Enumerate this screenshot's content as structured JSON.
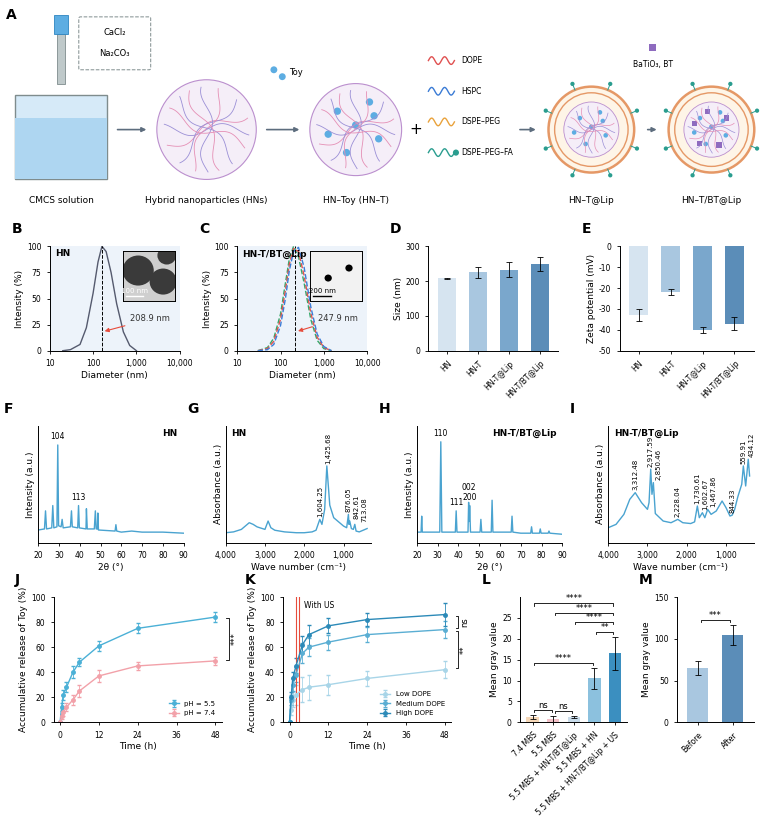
{
  "diagram": {
    "label": "A",
    "reagents": [
      "CaCl₂",
      "Na₂CO₃"
    ],
    "nodes": [
      {
        "label": "CMCS solution"
      },
      {
        "label": "Hybrid nanoparticles (HNs)"
      },
      {
        "label": "HN–Toy (HN–T)"
      },
      {
        "label": "HN–T@Lip"
      },
      {
        "label": "HN–T/BT@Lip"
      }
    ],
    "drug": "Toy",
    "join_symbol": "+",
    "lipids": [
      {
        "name": "DOPE",
        "color": "#e05050"
      },
      {
        "name": "HSPC",
        "color": "#3a7bd5"
      },
      {
        "name": "DSPE–PEG",
        "color": "#e9a23b"
      },
      {
        "name": "DSPE–PEG–FA",
        "color": "#2a9d8f"
      }
    ],
    "additive": "BaTiO₃, BT"
  },
  "chart_data": [
    {
      "label": "B",
      "type": "line",
      "title": "HN",
      "log": "x",
      "x": [
        20,
        30,
        50,
        70,
        100,
        130,
        160,
        200,
        260,
        350,
        500,
        700,
        1000
      ],
      "series": [
        {
          "color": "#555a6e",
          "line_style": "solid",
          "values": [
            0,
            1,
            6,
            22,
            55,
            85,
            100,
            95,
            75,
            45,
            18,
            5,
            0
          ]
        }
      ],
      "reference_x": 160,
      "annotation": "208.9 nm",
      "inset_scale": "100 nm",
      "xlim": [
        10,
        10000
      ],
      "xticks": [
        10,
        100,
        {
          "value": 1000,
          "label": "1,000"
        },
        {
          "value": 10000,
          "label": "10,000"
        }
      ],
      "ylim": [
        0,
        100
      ],
      "yticks": [
        0,
        25,
        50,
        75,
        100
      ],
      "x_label": "Diameter (nm)",
      "y_label": "Intensity (%)"
    },
    {
      "label": "C",
      "type": "line",
      "title": "HN-T/BT@Lip",
      "log": "x",
      "x": [
        30,
        50,
        70,
        100,
        130,
        160,
        200,
        260,
        350,
        500,
        700,
        1000,
        1500
      ],
      "series": [
        {
          "color": "#35a86b",
          "line_style": "dashed",
          "values": [
            0,
            3,
            12,
            35,
            65,
            88,
            100,
            90,
            65,
            30,
            10,
            2,
            0
          ]
        },
        {
          "color": "#e0524f",
          "line_style": "dashed",
          "values": [
            0,
            2,
            9,
            30,
            58,
            83,
            98,
            95,
            72,
            36,
            13,
            3,
            0
          ]
        },
        {
          "color": "#3b7dd8",
          "line_style": "dashed",
          "values": [
            0,
            1,
            6,
            24,
            50,
            77,
            95,
            99,
            80,
            42,
            16,
            4,
            0
          ]
        }
      ],
      "reference_x": 220,
      "annotation": "247.9 nm",
      "inset_scale": "200 nm",
      "xlim": [
        10,
        10000
      ],
      "xticks": [
        10,
        100,
        {
          "value": 1000,
          "label": "1,000"
        },
        {
          "value": 10000,
          "label": "10,000"
        }
      ],
      "ylim": [
        0,
        100
      ],
      "yticks": [
        0,
        25,
        50,
        75,
        100
      ],
      "x_label": "Diameter (nm)",
      "y_label": "Intensity (%)"
    },
    {
      "label": "D",
      "type": "bar",
      "categories": [
        "HN",
        "HN-T",
        "HN-T@Lip",
        "HN-T/BT@Lip"
      ],
      "values": [
        208,
        225,
        233,
        248
      ],
      "errors": [
        2,
        15,
        22,
        20
      ],
      "colors": [
        "#d6e4f0",
        "#a9c7e0",
        "#7aa7cc",
        "#5b8db8"
      ],
      "ylim": [
        0,
        300
      ],
      "yticks": [
        0,
        100,
        200,
        300
      ],
      "y_label": "Size (nm)"
    },
    {
      "label": "E",
      "type": "bar",
      "categories": [
        "HN",
        "HN-T",
        "HN-T@Lip",
        "HN-T/BT@Lip"
      ],
      "values": [
        -33,
        -22,
        -40,
        -37
      ],
      "errors": [
        3,
        1.5,
        1.5,
        3
      ],
      "colors": [
        "#d6e4f0",
        "#a9c7e0",
        "#7aa7cc",
        "#5b8db8"
      ],
      "ylim": [
        -50,
        0
      ],
      "yticks": [
        -50,
        -40,
        -30,
        -20,
        -10,
        0
      ],
      "y_label": "Zeta potential (mV)"
    },
    {
      "label": "F",
      "type": "line",
      "title": "HN",
      "tick_labels": "x",
      "x": [
        20,
        23,
        23.5,
        24,
        26.5,
        27,
        27.5,
        29,
        29.4,
        29.8,
        31,
        31.5,
        32,
        35.5,
        36,
        36.4,
        39,
        39.4,
        39.8,
        43,
        43.2,
        43.6,
        47,
        47.5,
        47.9,
        48.5,
        48.7,
        49,
        57,
        57.4,
        57.8,
        60,
        65,
        70,
        80,
        90
      ],
      "series": [
        {
          "color": "#4aa3d0",
          "line_style": "solid",
          "values": [
            12,
            13,
            30,
            13,
            14,
            35,
            14,
            15,
            92,
            16,
            15,
            22,
            14,
            15,
            30,
            15,
            14,
            35,
            14,
            13,
            32,
            13,
            13,
            30,
            13,
            13,
            28,
            12,
            11,
            17,
            11,
            10,
            11,
            10,
            10,
            9
          ]
        }
      ],
      "peak_labels": [
        {
          "text": "104",
          "x": 29.4,
          "y": 92
        },
        {
          "text": "113",
          "x": 39.4,
          "y": 35
        }
      ],
      "xlim": [
        20,
        90
      ],
      "xticks": [
        20,
        30,
        40,
        50,
        60,
        70,
        80,
        90
      ],
      "ylim": [
        0,
        110
      ],
      "x_label": "2θ (°)",
      "y_label": "Intensity (a.u.)"
    },
    {
      "label": "G",
      "type": "line",
      "title": "HN",
      "tick_labels": "x",
      "x": [
        4000,
        3800,
        3600,
        3450,
        3400,
        3300,
        3200,
        3000,
        2920,
        2850,
        2750,
        2500,
        2200,
        2000,
        1800,
        1700,
        1604,
        1550,
        1480,
        1425,
        1350,
        1250,
        1100,
        1000,
        920,
        876,
        860,
        842,
        800,
        750,
        713,
        680,
        600,
        500,
        400
      ],
      "series": [
        {
          "color": "#4aa3d0",
          "line_style": "solid",
          "values": [
            12,
            13,
            16,
            22,
            24,
            22,
            19,
            16,
            26,
            18,
            15,
            13,
            12,
            12,
            13,
            15,
            28,
            22,
            40,
            92,
            45,
            30,
            24,
            20,
            18,
            34,
            22,
            26,
            17,
            16,
            22,
            14,
            13,
            15,
            17
          ]
        }
      ],
      "peak_labels": [
        {
          "text": "1,604.25",
          "x": 1604.25,
          "y": 28
        },
        {
          "text": "1,425.68",
          "x": 1425.68,
          "y": 92
        },
        {
          "text": "876.05",
          "x": 876.05,
          "y": 34
        },
        {
          "text": "842.61",
          "x": 842.61,
          "y": 26
        },
        {
          "text": "713.08",
          "x": 713.08,
          "y": 22
        }
      ],
      "xlim": [
        4000,
        300
      ],
      "xticks": [
        {
          "value": 4000,
          "label": "4,000"
        },
        {
          "value": 3000,
          "label": "3,000"
        },
        {
          "value": 2000,
          "label": "2,000"
        },
        {
          "value": 1000,
          "label": "1,000"
        }
      ],
      "ylim": [
        0,
        140
      ],
      "x_label": "Wave number (cm⁻¹)",
      "y_label": "Absorbance (a.u.)"
    },
    {
      "label": "H",
      "type": "line",
      "title": "HN-T/BT@Lip",
      "tick_labels": "x",
      "x": [
        20,
        22,
        22.3,
        22.6,
        28,
        31,
        31.5,
        32,
        38.5,
        38.9,
        39.3,
        44.6,
        44.9,
        45.2,
        45.4,
        45.8,
        50.4,
        50.8,
        51.2,
        55.8,
        56.2,
        56.6,
        65.4,
        65.8,
        66.2,
        70,
        74.8,
        75.2,
        75.6,
        79,
        79.4,
        79.8,
        83.2,
        83.6,
        84,
        90
      ],
      "series": [
        {
          "color": "#4aa3d0",
          "line_style": "solid",
          "values": [
            10,
            10,
            25,
            10,
            10,
            10,
            95,
            10,
            10,
            30,
            10,
            10,
            38,
            20,
            35,
            10,
            10,
            22,
            10,
            10,
            40,
            10,
            10,
            25,
            10,
            9,
            9,
            15,
            9,
            9,
            13,
            9,
            9,
            11,
            9,
            8
          ]
        }
      ],
      "peak_labels": [
        {
          "text": "110",
          "x": 31.5,
          "y": 95
        },
        {
          "text": "111",
          "x": 38.9,
          "y": 30
        },
        {
          "text": "200",
          "x": 45.4,
          "y": 35
        },
        {
          "text": "002",
          "x": 44.9,
          "y": 38
        }
      ],
      "xlim": [
        20,
        90
      ],
      "xticks": [
        20,
        30,
        40,
        50,
        60,
        70,
        80,
        90
      ],
      "ylim": [
        0,
        110
      ],
      "x_label": "2θ (°)",
      "y_label": "Intensity (a.u.)"
    },
    {
      "label": "I",
      "type": "line",
      "title": "HN-T/BT@Lip",
      "tick_labels": "x",
      "x": [
        4000,
        3800,
        3600,
        3450,
        3312,
        3150,
        3000,
        2960,
        2917,
        2885,
        2850,
        2800,
        2600,
        2400,
        2228,
        2100,
        1900,
        1800,
        1730,
        1680,
        1602,
        1540,
        1467,
        1380,
        1250,
        1100,
        1000,
        900,
        844,
        780,
        700,
        600,
        559,
        500,
        434,
        400
      ],
      "series": [
        {
          "color": "#4aa3d0",
          "line_style": "solid",
          "values": [
            18,
            22,
            34,
            52,
            60,
            48,
            40,
            48,
            88,
            58,
            72,
            35,
            26,
            24,
            28,
            24,
            23,
            25,
            44,
            30,
            36,
            30,
            40,
            34,
            38,
            50,
            42,
            32,
            33,
            40,
            55,
            70,
            92,
            68,
            100,
            80
          ]
        }
      ],
      "peak_labels": [
        {
          "text": "3,312.48",
          "x": 3312.48,
          "y": 60
        },
        {
          "text": "2,917.59",
          "x": 2917.59,
          "y": 88
        },
        {
          "text": "2,850.46",
          "x": 2850.46,
          "y": 72
        },
        {
          "text": "2,228.04",
          "x": 2228.04,
          "y": 28
        },
        {
          "text": "1,730.61",
          "x": 1730.61,
          "y": 44
        },
        {
          "text": "1,602.67",
          "x": 1602.67,
          "y": 36
        },
        {
          "text": "1,467.86",
          "x": 1467.86,
          "y": 40
        },
        {
          "text": "844.33",
          "x": 844.33,
          "y": 33
        },
        {
          "text": "559.91",
          "x": 559.91,
          "y": 92
        },
        {
          "text": "434.12",
          "x": 434.12,
          "y": 100
        }
      ],
      "xlim": [
        4000,
        300
      ],
      "xticks": [
        {
          "value": 4000,
          "label": "4,000"
        },
        {
          "value": 3000,
          "label": "3,000"
        },
        {
          "value": 2000,
          "label": "2,000"
        },
        {
          "value": 1000,
          "label": "1,000"
        }
      ],
      "ylim": [
        0,
        140
      ],
      "x_label": "Wave number (cm⁻¹)",
      "y_label": "Absorbance (a.u.)"
    },
    {
      "label": "J",
      "type": "line",
      "legend": "lower right",
      "x": [
        0,
        0.5,
        1,
        2,
        4,
        6,
        12,
        24,
        48
      ],
      "series": [
        {
          "name": "pH = 5.5",
          "color": "#4bb0d6",
          "marker": "o",
          "line_style": "solid",
          "values": [
            0,
            12,
            22,
            28,
            40,
            48,
            61,
            75,
            84
          ],
          "errors": [
            0,
            3,
            4,
            4,
            5,
            3,
            4,
            4,
            4
          ]
        },
        {
          "name": "pH = 7.4",
          "color": "#f2a1a9",
          "marker": "o",
          "line_style": "solid",
          "values": [
            0,
            5,
            8,
            12,
            18,
            25,
            37,
            45,
            49
          ],
          "errors": [
            0,
            2,
            3,
            3,
            4,
            5,
            5,
            3,
            3
          ]
        }
      ],
      "significance": [
        {
          "from": 0,
          "to": 1,
          "text": "***"
        }
      ],
      "xlim": [
        -2,
        50
      ],
      "xticks": [
        0,
        12,
        24,
        36,
        48
      ],
      "ylim": [
        0,
        100
      ],
      "yticks": [
        0,
        20,
        40,
        60,
        80,
        100
      ],
      "x_label": "Time (h)",
      "y_label": "Accumulative release of Toy (%)"
    },
    {
      "label": "K",
      "type": "line",
      "legend": "lower right",
      "x": [
        0,
        0.5,
        1,
        2,
        4,
        6,
        12,
        24,
        48
      ],
      "series": [
        {
          "name": "Low DOPE",
          "color": "#a8d5e8",
          "marker": "o",
          "line_style": "solid",
          "values": [
            0,
            10,
            18,
            22,
            26,
            28,
            30,
            35,
            42
          ],
          "errors": [
            0,
            4,
            6,
            8,
            10,
            10,
            8,
            6,
            7
          ]
        },
        {
          "name": "Medium DOPE",
          "color": "#5aaed3",
          "marker": "o",
          "line_style": "solid",
          "values": [
            0,
            18,
            30,
            38,
            55,
            60,
            64,
            70,
            74
          ],
          "errors": [
            0,
            4,
            5,
            6,
            8,
            7,
            6,
            6,
            7
          ]
        },
        {
          "name": "High DOPE",
          "color": "#2c8ab8",
          "marker": "o",
          "line_style": "solid",
          "values": [
            0,
            20,
            35,
            45,
            62,
            70,
            77,
            82,
            86
          ],
          "errors": [
            0,
            4,
            5,
            6,
            7,
            8,
            6,
            5,
            9
          ]
        }
      ],
      "us_times": [
        2,
        3
      ],
      "annotation": "With US",
      "significance": [
        {
          "from": 2,
          "to": 1,
          "text": "ns"
        },
        {
          "from": 1,
          "to": 0,
          "text": "**"
        }
      ],
      "xlim": [
        -2,
        50
      ],
      "xticks": [
        0,
        12,
        24,
        36,
        48
      ],
      "ylim": [
        0,
        100
      ],
      "yticks": [
        0,
        20,
        40,
        60,
        80,
        100
      ],
      "x_label": "Time (h)",
      "y_label": "Accumulative release of Toy (%)"
    },
    {
      "label": "L",
      "type": "bar",
      "categories": [
        "7.4 MBS",
        "5.5 MBS",
        "5.5 MBS + HN-T/BT@Lip",
        "5.5 MBS + HN",
        "5.5 MBS + HN-T/BT@Lip + US"
      ],
      "values": [
        1.2,
        0.8,
        1.3,
        10.5,
        16.5
      ],
      "errors": [
        0.5,
        0.8,
        0.3,
        2.5,
        4
      ],
      "colors": [
        "#f6d8b8",
        "#f3c1c7",
        "#c9dceb",
        "#8cc1de",
        "#3b8fc0"
      ],
      "significance": [
        {
          "from": 0,
          "to": 1,
          "text": "ns"
        },
        {
          "from": 1,
          "to": 2,
          "text": "ns"
        },
        {
          "from": 0,
          "to": 3,
          "text": "****"
        },
        {
          "from": 3,
          "to": 4,
          "text": "**"
        },
        {
          "from": 2,
          "to": 4,
          "text": "****"
        },
        {
          "from": 1,
          "to": 4,
          "text": "****"
        },
        {
          "from": 0,
          "to": 4,
          "text": "****"
        }
      ],
      "ylim": [
        0,
        30
      ],
      "yticks": [
        0,
        5,
        10,
        15,
        20,
        25
      ],
      "y_label": "Mean gray value"
    },
    {
      "label": "M",
      "type": "bar",
      "categories": [
        "Before",
        "After"
      ],
      "values": [
        65,
        104
      ],
      "errors": [
        8,
        12
      ],
      "colors": [
        "#a9c7e0",
        "#5b8db8"
      ],
      "significance": [
        {
          "from": 0,
          "to": 1,
          "text": "***"
        }
      ],
      "ylim": [
        0,
        150
      ],
      "yticks": [
        0,
        50,
        100,
        150
      ],
      "y_label": "Mean gray value"
    }
  ]
}
